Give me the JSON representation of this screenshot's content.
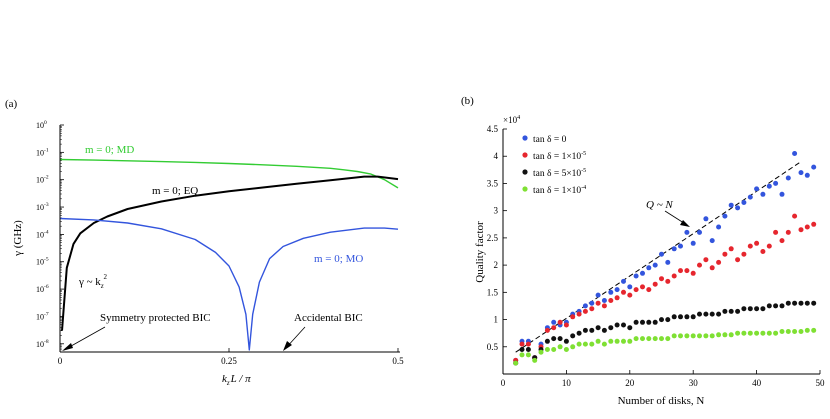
{
  "chart_data": [
    {
      "panel": "(a)",
      "type": "line",
      "xlabel_main": "k",
      "xlabel_sub": "z",
      "xlabel_rest": "L / π",
      "ylabel": "γ (GHz)",
      "yscale": "log",
      "xlim": [
        0,
        0.5
      ],
      "ylim_exp": [
        -8.3,
        0
      ],
      "xticks": [
        {
          "v": 0,
          "label": "0"
        },
        {
          "v": 0.25,
          "label": "0.25"
        },
        {
          "v": 0.5,
          "label": "0.5"
        }
      ],
      "yticks": [
        {
          "e": 0,
          "label": "10",
          "sup": "0"
        },
        {
          "e": -1,
          "label": "10",
          "sup": "-1"
        },
        {
          "e": -2,
          "label": "10",
          "sup": "-2"
        },
        {
          "e": -3,
          "label": "10",
          "sup": "-3"
        },
        {
          "e": -4,
          "label": "10",
          "sup": "-4"
        },
        {
          "e": -5,
          "label": "10",
          "sup": "-5"
        },
        {
          "e": -6,
          "label": "10",
          "sup": "-6"
        },
        {
          "e": -7,
          "label": "10",
          "sup": "-7"
        },
        {
          "e": -8,
          "label": "10",
          "sup": "-8"
        }
      ],
      "series": [
        {
          "name": "m = 0; MD",
          "color": "#33cc33",
          "x": [
            0,
            0.05,
            0.1,
            0.15,
            0.2,
            0.25,
            0.3,
            0.35,
            0.4,
            0.42,
            0.44,
            0.46,
            0.48,
            0.5
          ],
          "y": [
            0.055,
            0.052,
            0.049,
            0.046,
            0.043,
            0.039,
            0.035,
            0.031,
            0.026,
            0.023,
            0.02,
            0.016,
            0.01,
            0.005
          ]
        },
        {
          "name": "m = 0; EQ",
          "color": "#000000",
          "x": [
            0.003,
            0.01,
            0.02,
            0.03,
            0.05,
            0.07,
            0.1,
            0.15,
            0.2,
            0.25,
            0.3,
            0.35,
            0.4,
            0.45,
            0.47,
            0.5
          ],
          "y": [
            3e-08,
            6e-06,
            4.5e-05,
            0.00011,
            0.00026,
            0.00045,
            0.00085,
            0.0016,
            0.0026,
            0.0038,
            0.0052,
            0.0071,
            0.0095,
            0.013,
            0.013,
            0.0105
          ]
        },
        {
          "name": "m = 0; MO",
          "color": "#3355dd",
          "x": [
            0,
            0.05,
            0.1,
            0.15,
            0.2,
            0.23,
            0.25,
            0.265,
            0.275,
            0.28,
            0.285,
            0.295,
            0.31,
            0.33,
            0.36,
            0.4,
            0.45,
            0.48,
            0.5
          ],
          "y": [
            0.00038,
            0.00034,
            0.00026,
            0.00016,
            6.5e-05,
            2.2e-05,
            7e-06,
            1.2e-06,
            1.2e-07,
            6e-09,
            1.2e-07,
            1.8e-06,
            1.3e-05,
            3.6e-05,
            7.2e-05,
            0.00012,
            0.00017,
            0.00017,
            0.000155
          ]
        }
      ],
      "annotations": {
        "md_label": "m = 0; MD",
        "eq_label": "m = 0; EQ",
        "mo_label": "m = 0; MO",
        "gamma_main": "γ ~ k",
        "gamma_sub": "z",
        "gamma_sup": "2",
        "sym_bic": "Symmetry protected BIC",
        "acc_bic": "Accidental BIC"
      }
    },
    {
      "panel": "(b)",
      "type": "scatter",
      "xlabel": "Number of disks, N",
      "ylabel": "Quality factor",
      "multiplier": "×10",
      "multiplier_sup": "4",
      "xlim": [
        0,
        50
      ],
      "ylim": [
        0,
        4.5
      ],
      "xticks": [
        0,
        10,
        20,
        30,
        40,
        50
      ],
      "yticks": [
        0.5,
        1,
        1.5,
        2,
        2.5,
        3,
        3.5,
        4,
        4.5
      ],
      "fit_label": "Q ~ N",
      "fit_line": {
        "x": [
          2,
          47
        ],
        "y": [
          0.4,
          3.9
        ]
      },
      "series": [
        {
          "name": "tan δ = 0",
          "color": "#3355dd",
          "x": [
            2,
            3,
            4,
            5,
            6,
            7,
            8,
            9,
            10,
            11,
            12,
            13,
            14,
            15,
            16,
            17,
            18,
            19,
            20,
            21,
            22,
            23,
            24,
            25,
            26,
            27,
            28,
            29,
            30,
            31,
            32,
            33,
            34,
            35,
            36,
            37,
            38,
            39,
            40,
            41,
            42,
            43,
            44,
            45,
            46,
            47,
            48,
            49
          ],
          "y": [
            0.25,
            0.6,
            0.6,
            0.3,
            0.55,
            0.85,
            0.95,
            0.9,
            0.95,
            1.1,
            1.15,
            1.25,
            1.3,
            1.45,
            1.35,
            1.5,
            1.55,
            1.7,
            1.6,
            1.8,
            1.85,
            1.95,
            2.0,
            2.2,
            2.05,
            2.3,
            2.35,
            2.6,
            2.4,
            2.6,
            2.85,
            2.45,
            2.7,
            2.9,
            3.1,
            3.05,
            3.15,
            3.25,
            3.4,
            3.3,
            3.45,
            3.5,
            3.3,
            3.6,
            4.05,
            3.7,
            3.65,
            3.8
          ]
        },
        {
          "name": "tan δ = 1×10",
          "sup": "-5",
          "color": "#e6262e",
          "x": [
            2,
            3,
            4,
            5,
            6,
            7,
            8,
            9,
            10,
            11,
            12,
            13,
            14,
            15,
            16,
            17,
            18,
            19,
            20,
            21,
            22,
            23,
            24,
            25,
            26,
            27,
            28,
            29,
            30,
            31,
            32,
            33,
            34,
            35,
            36,
            37,
            38,
            39,
            40,
            41,
            42,
            43,
            44,
            45,
            46,
            47,
            48,
            49
          ],
          "y": [
            0.25,
            0.55,
            0.55,
            0.3,
            0.5,
            0.8,
            0.85,
            0.95,
            0.9,
            1.05,
            1.1,
            1.15,
            1.2,
            1.3,
            1.25,
            1.35,
            1.4,
            1.5,
            1.45,
            1.55,
            1.6,
            1.55,
            1.65,
            1.75,
            1.7,
            1.8,
            1.9,
            1.9,
            1.85,
            2.0,
            2.1,
            1.95,
            2.05,
            2.2,
            2.3,
            2.1,
            2.2,
            2.35,
            2.4,
            2.25,
            2.35,
            2.6,
            2.45,
            2.6,
            2.9,
            2.65,
            2.7,
            2.75
          ]
        },
        {
          "name": "tan δ = 5×10",
          "sup": "-5",
          "color": "#111111",
          "x": [
            2,
            3,
            4,
            5,
            6,
            7,
            8,
            9,
            10,
            11,
            12,
            13,
            14,
            15,
            16,
            17,
            18,
            19,
            20,
            21,
            22,
            23,
            24,
            25,
            26,
            27,
            28,
            29,
            30,
            31,
            32,
            33,
            34,
            35,
            36,
            37,
            38,
            39,
            40,
            41,
            42,
            43,
            44,
            45,
            46,
            47,
            48,
            49
          ],
          "y": [
            0.2,
            0.45,
            0.45,
            0.3,
            0.45,
            0.6,
            0.65,
            0.65,
            0.6,
            0.7,
            0.75,
            0.8,
            0.8,
            0.85,
            0.8,
            0.85,
            0.9,
            0.9,
            0.85,
            0.95,
            0.95,
            0.95,
            0.95,
            1.0,
            1.0,
            1.05,
            1.05,
            1.05,
            1.05,
            1.1,
            1.1,
            1.1,
            1.1,
            1.15,
            1.15,
            1.15,
            1.2,
            1.2,
            1.2,
            1.2,
            1.25,
            1.25,
            1.25,
            1.3,
            1.3,
            1.3,
            1.3,
            1.3
          ]
        },
        {
          "name": "tan δ = 1×10",
          "sup": "-4",
          "color": "#7fe033",
          "x": [
            2,
            3,
            4,
            5,
            6,
            7,
            8,
            9,
            10,
            11,
            12,
            13,
            14,
            15,
            16,
            17,
            18,
            19,
            20,
            21,
            22,
            23,
            24,
            25,
            26,
            27,
            28,
            29,
            30,
            31,
            32,
            33,
            34,
            35,
            36,
            37,
            38,
            39,
            40,
            41,
            42,
            43,
            44,
            45,
            46,
            47,
            48,
            49
          ],
          "y": [
            0.2,
            0.35,
            0.35,
            0.25,
            0.4,
            0.45,
            0.45,
            0.5,
            0.45,
            0.5,
            0.55,
            0.55,
            0.55,
            0.6,
            0.55,
            0.6,
            0.6,
            0.6,
            0.6,
            0.65,
            0.65,
            0.65,
            0.65,
            0.65,
            0.65,
            0.7,
            0.7,
            0.7,
            0.7,
            0.7,
            0.7,
            0.7,
            0.72,
            0.72,
            0.72,
            0.75,
            0.75,
            0.75,
            0.75,
            0.75,
            0.75,
            0.75,
            0.78,
            0.78,
            0.78,
            0.78,
            0.8,
            0.8
          ]
        }
      ]
    }
  ]
}
